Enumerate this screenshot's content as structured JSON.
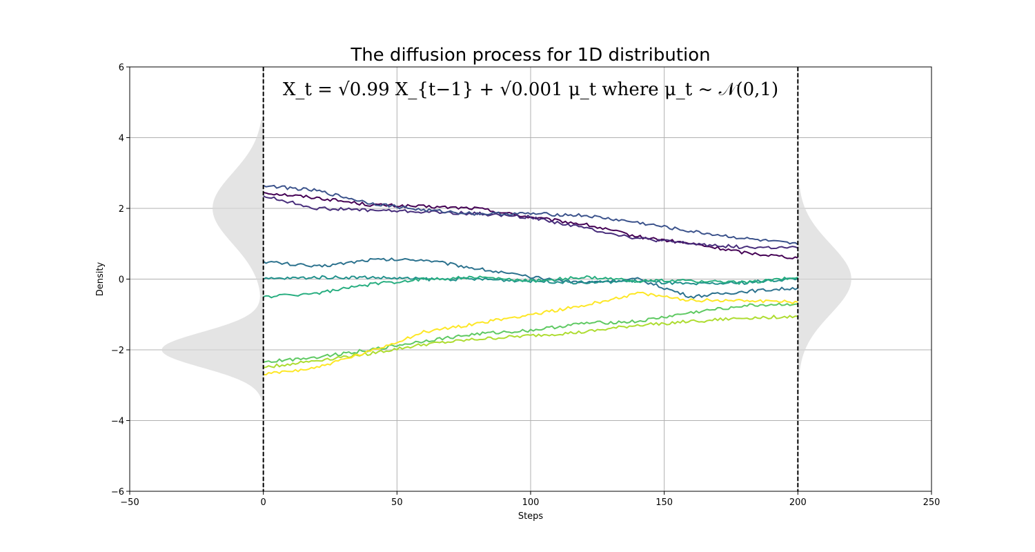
{
  "chart_data": {
    "type": "line",
    "title": "The diffusion process for 1D distribution",
    "formula": "X_t = √0.99 X_{t−1} + √0.001 μ_t where μ_t ~ 𝒩(0,1)",
    "xlabel": "Steps",
    "ylabel": "Density",
    "xlim": [
      -50,
      250
    ],
    "ylim": [
      -6,
      6
    ],
    "xticks": [
      -50,
      0,
      50,
      100,
      150,
      200,
      250
    ],
    "yticks": [
      -6,
      -4,
      -2,
      0,
      2,
      4,
      6
    ],
    "grid": true,
    "vlines": [
      {
        "x": 0,
        "style": "dashed",
        "color": "#000000"
      },
      {
        "x": 200,
        "style": "dashed",
        "color": "#000000"
      }
    ],
    "initial_density": {
      "description_side": "left",
      "components": [
        {
          "mean": 2,
          "std": 1,
          "weight": 0.5
        },
        {
          "mean": -2,
          "std": 0.5,
          "weight": 0.5
        }
      ],
      "peak_width_steps": 38,
      "color": "#d9d9d9"
    },
    "final_density": {
      "description_side": "right",
      "components": [
        {
          "mean": 0,
          "std": 1,
          "weight": 1
        }
      ],
      "peak_width_steps": 20,
      "color": "#d9d9d9"
    },
    "series": [
      {
        "color": "#440154",
        "x": [
          0,
          20,
          40,
          60,
          80,
          100,
          120,
          140,
          160,
          180,
          200
        ],
        "y": [
          2.45,
          2.3,
          2.1,
          2.05,
          2.0,
          1.75,
          1.55,
          1.2,
          1.0,
          0.75,
          0.6
        ]
      },
      {
        "color": "#472d7b",
        "x": [
          0,
          20,
          40,
          60,
          80,
          100,
          120,
          140,
          160,
          180,
          200
        ],
        "y": [
          2.35,
          2.0,
          1.95,
          1.9,
          1.85,
          1.75,
          1.45,
          1.15,
          1.0,
          0.9,
          0.88
        ]
      },
      {
        "color": "#3b528b",
        "x": [
          0,
          20,
          40,
          60,
          80,
          100,
          120,
          140,
          160,
          180,
          200
        ],
        "y": [
          2.65,
          2.5,
          2.15,
          1.95,
          1.85,
          1.85,
          1.8,
          1.6,
          1.35,
          1.15,
          0.98
        ]
      },
      {
        "color": "#2c728e",
        "x": [
          0,
          20,
          40,
          60,
          80,
          100,
          120,
          140,
          160,
          180,
          200
        ],
        "y": [
          0.5,
          0.35,
          0.55,
          0.55,
          0.3,
          0.05,
          -0.1,
          0.0,
          -0.5,
          -0.35,
          -0.25
        ]
      },
      {
        "color": "#21918c",
        "x": [
          0,
          20,
          40,
          60,
          80,
          100,
          120,
          140,
          160,
          180,
          200
        ],
        "y": [
          0.0,
          0.05,
          0.05,
          0.0,
          0.0,
          -0.05,
          -0.1,
          -0.05,
          -0.15,
          -0.1,
          0.02
        ]
      },
      {
        "color": "#28ae80",
        "x": [
          0,
          20,
          40,
          60,
          80,
          100,
          120,
          140,
          160,
          180,
          200
        ],
        "y": [
          -0.5,
          -0.4,
          -0.15,
          0.0,
          0.05,
          -0.05,
          0.05,
          -0.05,
          -0.05,
          -0.1,
          0.05
        ]
      },
      {
        "color": "#5ec962",
        "x": [
          0,
          20,
          40,
          60,
          80,
          100,
          120,
          140,
          160,
          180,
          200
        ],
        "y": [
          -2.35,
          -2.2,
          -2.0,
          -1.75,
          -1.55,
          -1.45,
          -1.25,
          -1.2,
          -0.95,
          -0.75,
          -0.7
        ]
      },
      {
        "color": "#addc30",
        "x": [
          0,
          20,
          40,
          60,
          80,
          100,
          120,
          140,
          160,
          180,
          200
        ],
        "y": [
          -2.5,
          -2.3,
          -2.1,
          -1.85,
          -1.7,
          -1.6,
          -1.5,
          -1.3,
          -1.2,
          -1.1,
          -1.05
        ]
      },
      {
        "color": "#fde725",
        "x": [
          0,
          20,
          40,
          60,
          80,
          100,
          120,
          140,
          160,
          180,
          200
        ],
        "y": [
          -2.7,
          -2.5,
          -2.05,
          -1.5,
          -1.25,
          -1.0,
          -0.75,
          -0.4,
          -0.6,
          -0.6,
          -0.65
        ]
      }
    ]
  }
}
